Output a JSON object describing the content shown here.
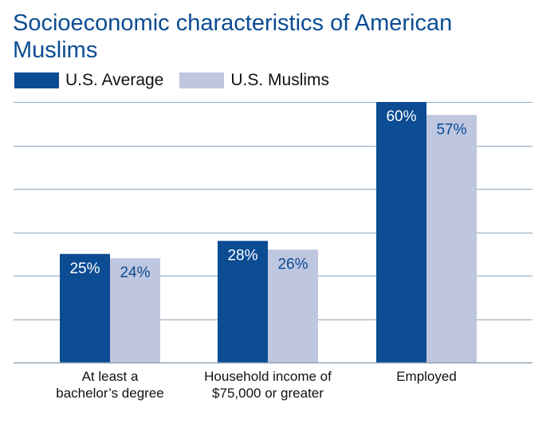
{
  "chart_data": {
    "type": "bar",
    "title": "Socioeconomic characteristics of American Muslims",
    "categories": [
      [
        "At least a",
        "bachelor’s degree"
      ],
      [
        "Household income of",
        "$75,000 or greater"
      ],
      [
        "Employed"
      ]
    ],
    "series": [
      {
        "name": "U.S. Average",
        "values": [
          25,
          28,
          60
        ],
        "labels": [
          "25%",
          "28%",
          "60%"
        ],
        "color": "#0b4c93",
        "label_color": "#ffffff"
      },
      {
        "name": "U.S. Muslims",
        "values": [
          24,
          26,
          57
        ],
        "labels": [
          "24%",
          "26%",
          "57%"
        ],
        "color": "#bec6e0",
        "label_color": "#0b4c93"
      }
    ],
    "ylim": [
      0,
      60
    ],
    "grid": true,
    "legend_position": "top-left",
    "gridline_color": "#8fa6b9"
  }
}
